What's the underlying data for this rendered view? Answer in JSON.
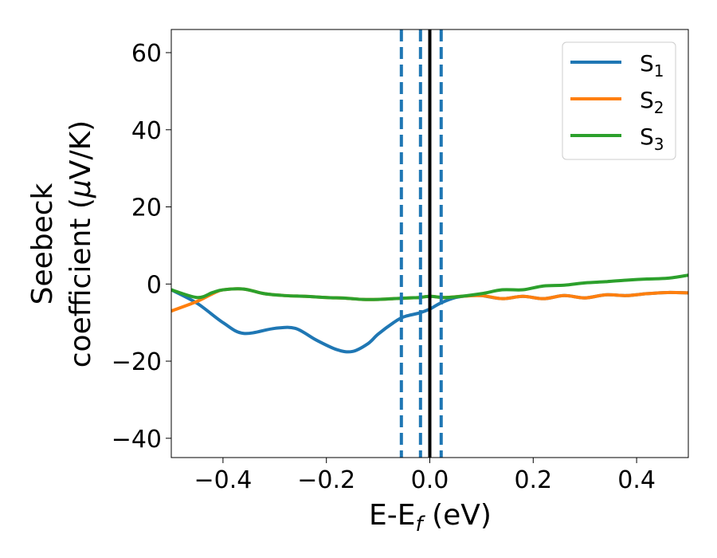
{
  "chart_data": {
    "type": "line",
    "xlabel": {
      "base": "E-E",
      "sub": "f",
      "unit": " (eV)"
    },
    "ylabel": {
      "line1": "Seebeck",
      "line2_prefix": "coefficient  (",
      "mu": "μ",
      "line2_suffix": "V/K)"
    },
    "xlim": [
      -0.5,
      0.5
    ],
    "ylim": [
      -45,
      66
    ],
    "xticks": [
      -0.4,
      -0.2,
      0.0,
      0.2,
      0.4
    ],
    "xtick_labels": [
      "−0.4",
      "−0.2",
      "0.0",
      "0.2",
      "0.4"
    ],
    "yticks": [
      -40,
      -20,
      0,
      20,
      40,
      60
    ],
    "ytick_labels": [
      "−40",
      "−20",
      "0",
      "20",
      "40",
      "60"
    ],
    "grid": false,
    "legend": {
      "placement": "top-right"
    },
    "vlines": [
      {
        "x": -0.055,
        "style": "dashed",
        "color": "#1f77b4"
      },
      {
        "x": -0.018,
        "style": "dashed",
        "color": "#1f77b4"
      },
      {
        "x": 0.022,
        "style": "dashed",
        "color": "#1f77b4"
      },
      {
        "x": 0.0,
        "style": "solid",
        "color": "#000000"
      }
    ],
    "series": [
      {
        "name": "S",
        "name_sub": "1",
        "color": "#1f77b4",
        "x": [
          -0.5,
          -0.45,
          -0.4,
          -0.36,
          -0.3,
          -0.26,
          -0.22,
          -0.18,
          -0.15,
          -0.12,
          -0.1,
          -0.07,
          -0.05,
          -0.02,
          0.0,
          0.02,
          0.05,
          0.08,
          0.1,
          0.14,
          0.18,
          0.22,
          0.26,
          0.3,
          0.34,
          0.38,
          0.42,
          0.46,
          0.5
        ],
        "values": [
          -1.5,
          -5,
          -10,
          -12.8,
          -11.5,
          -11.5,
          -14.5,
          -17,
          -17.5,
          -15.5,
          -13,
          -10,
          -8.5,
          -7.5,
          -6.5,
          -5,
          -3.5,
          -3,
          -3,
          -3.8,
          -3.2,
          -3.8,
          -3,
          -3.6,
          -2.8,
          -3,
          -2.5,
          -2.2,
          -2.3
        ]
      },
      {
        "name": "S",
        "name_sub": "2",
        "color": "#ff7f0e",
        "x": [
          -0.5,
          -0.45,
          -0.42,
          -0.4,
          -0.36,
          -0.32,
          -0.28,
          -0.24,
          -0.2,
          -0.16,
          -0.13,
          -0.1,
          -0.07,
          -0.04,
          -0.02,
          0.0,
          0.03,
          0.06,
          0.1,
          0.14,
          0.18,
          0.22,
          0.26,
          0.3,
          0.34,
          0.38,
          0.42,
          0.46,
          0.5
        ],
        "values": [
          -7,
          -4.5,
          -2.5,
          -1.5,
          -1.3,
          -2.5,
          -3,
          -3.2,
          -3.5,
          -3.7,
          -4,
          -4,
          -3.8,
          -3.6,
          -3.5,
          -3.2,
          -3.5,
          -3.2,
          -3,
          -3.8,
          -3.2,
          -3.8,
          -3,
          -3.6,
          -2.8,
          -3,
          -2.5,
          -2.2,
          -2.3
        ]
      },
      {
        "name": "S",
        "name_sub": "3",
        "color": "#2ca02c",
        "x": [
          -0.5,
          -0.45,
          -0.42,
          -0.4,
          -0.36,
          -0.32,
          -0.28,
          -0.24,
          -0.2,
          -0.16,
          -0.13,
          -0.1,
          -0.07,
          -0.04,
          -0.02,
          0.0,
          0.03,
          0.06,
          0.1,
          0.14,
          0.18,
          0.22,
          0.26,
          0.3,
          0.34,
          0.38,
          0.42,
          0.46,
          0.5
        ],
        "values": [
          -1.5,
          -3.5,
          -2.2,
          -1.5,
          -1.3,
          -2.5,
          -3,
          -3.2,
          -3.5,
          -3.7,
          -4,
          -4,
          -3.8,
          -3.6,
          -3.5,
          -3.2,
          -3.5,
          -3.2,
          -2.5,
          -1.5,
          -1.5,
          -0.5,
          -0.3,
          0.3,
          0.6,
          1,
          1.3,
          1.5,
          2.3
        ]
      }
    ]
  }
}
